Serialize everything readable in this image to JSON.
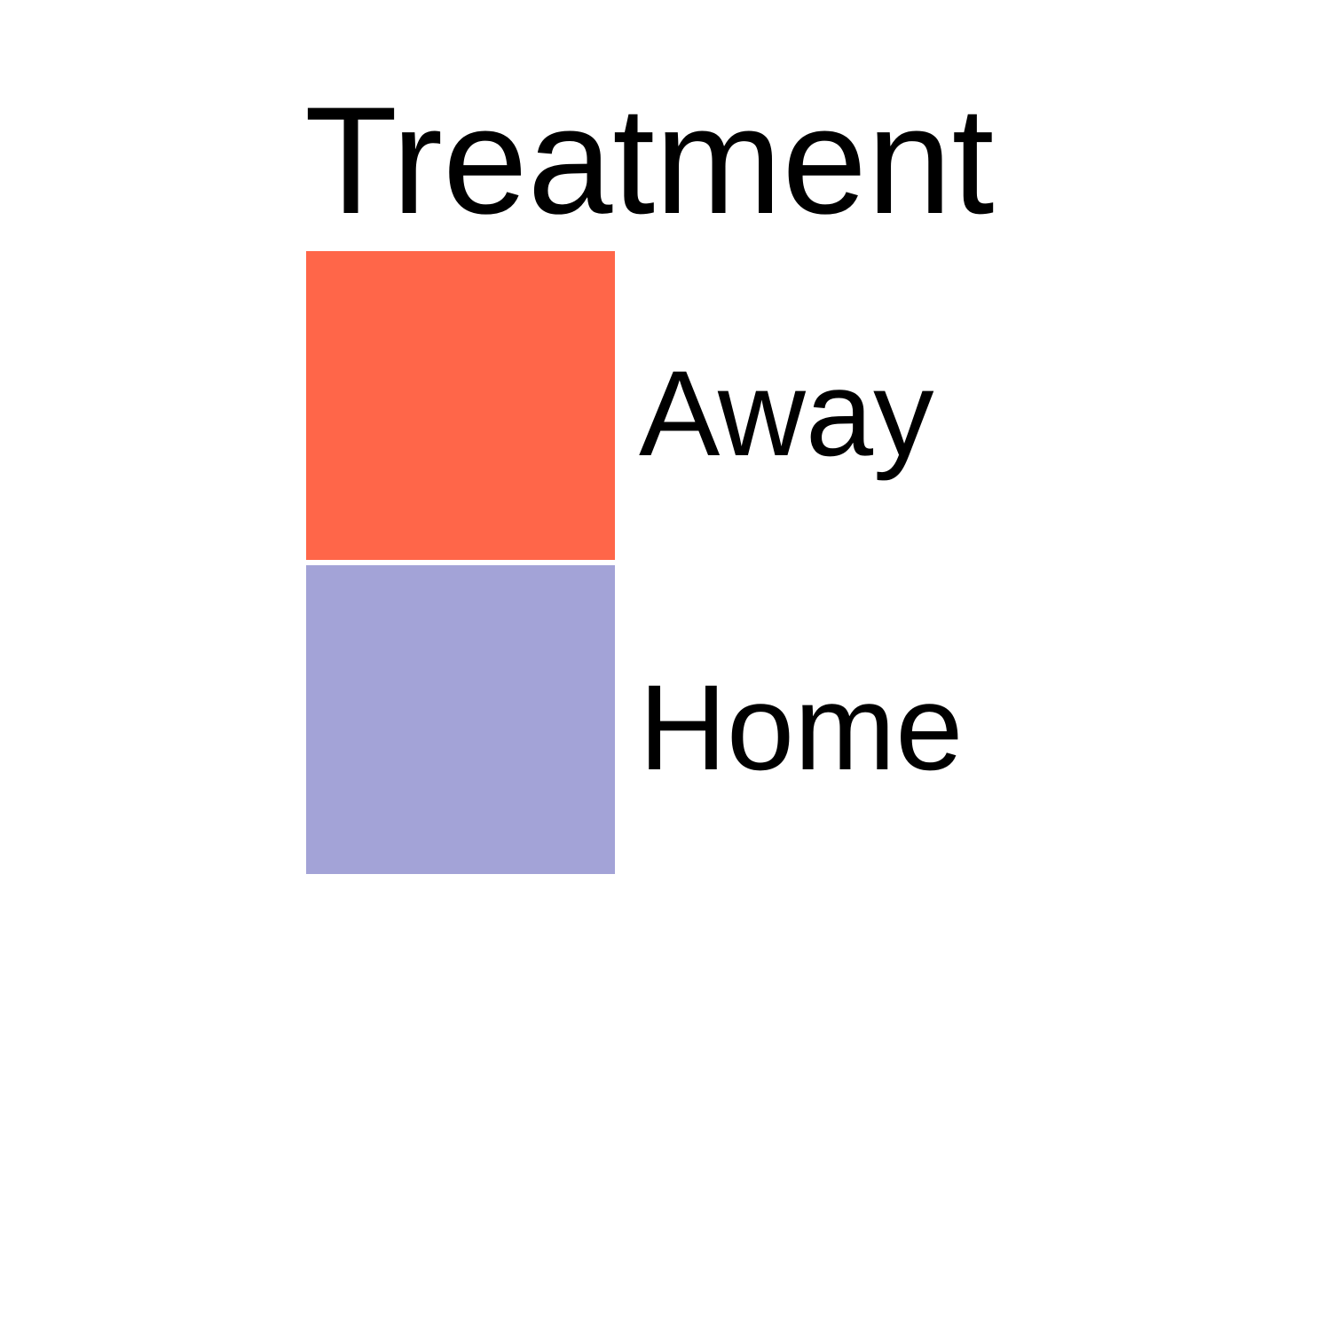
{
  "chart_data": {
    "type": "bar",
    "legend": {
      "title": "Treatment",
      "entries": [
        {
          "label": "Away",
          "color": "#FF6649"
        },
        {
          "label": "Home",
          "color": "#A3A3D7"
        }
      ]
    }
  }
}
